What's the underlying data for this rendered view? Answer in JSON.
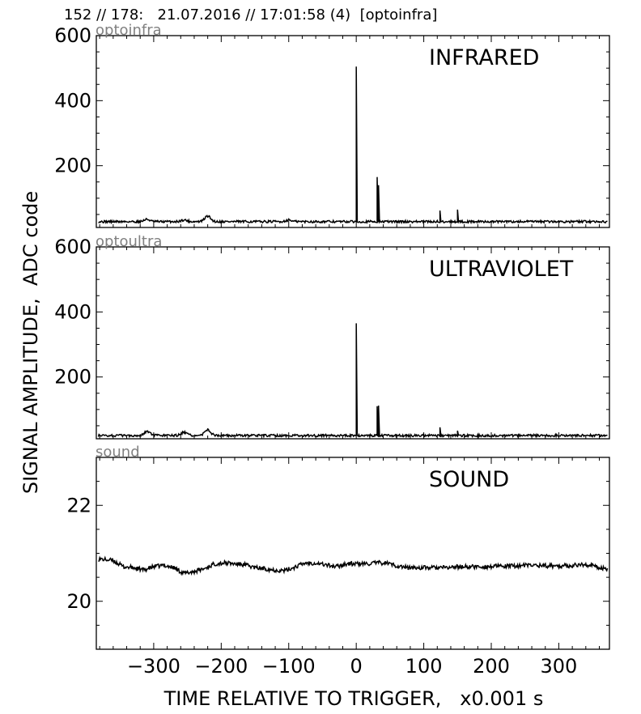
{
  "header": {
    "title": "152 // 178:   21.07.2016 // 17:01:58 (4)  [optoinfra]"
  },
  "figure": {
    "ylabel": "SIGNAL AMPLITUDE,  ADC code",
    "xlabel": "TIME RELATIVE TO TRIGGER,   x0.001 s"
  },
  "chart_data": [
    {
      "type": "line",
      "channel": "optoinfra",
      "title": "INFRARED",
      "xlim": [
        -385,
        375
      ],
      "ylim": [
        10,
        600
      ],
      "yticks": [
        200,
        400,
        600
      ],
      "xtick_labels_shown": false,
      "baseline": 28,
      "bumps": [
        [
          -310,
          35
        ],
        [
          -255,
          33
        ],
        [
          -220,
          45
        ],
        [
          -100,
          33
        ]
      ],
      "peaks": [
        {
          "x": 0,
          "y": 505
        },
        {
          "x": 31,
          "y": 165
        },
        {
          "x": 33,
          "y": 140
        },
        {
          "x": 124,
          "y": 62
        },
        {
          "x": 150,
          "y": 65
        }
      ]
    },
    {
      "type": "line",
      "channel": "optoultra",
      "title": "ULTRAVIOLET",
      "xlim": [
        -385,
        375
      ],
      "ylim": [
        10,
        600
      ],
      "yticks": [
        200,
        400,
        600
      ],
      "xtick_labels_shown": false,
      "baseline": 20,
      "bumps": [
        [
          -310,
          33
        ],
        [
          -255,
          30
        ],
        [
          -220,
          38
        ]
      ],
      "peaks": [
        {
          "x": 0,
          "y": 365
        },
        {
          "x": 31,
          "y": 110
        },
        {
          "x": 33,
          "y": 112
        },
        {
          "x": 124,
          "y": 45
        },
        {
          "x": 150,
          "y": 35
        }
      ]
    },
    {
      "type": "line",
      "channel": "sound",
      "title": "SOUND",
      "xlim": [
        -385,
        375
      ],
      "ylim": [
        19.0,
        23.0
      ],
      "yticks": [
        20,
        22
      ],
      "xticks": [
        -300,
        -200,
        -100,
        0,
        100,
        200,
        300
      ],
      "xtick_labels": [
        "−300",
        "−200",
        "−100",
        "0",
        "100",
        "200",
        "300"
      ],
      "points": [
        [
          -380,
          20.88
        ],
        [
          -360,
          20.85
        ],
        [
          -345,
          20.72
        ],
        [
          -330,
          20.7
        ],
        [
          -315,
          20.65
        ],
        [
          -300,
          20.72
        ],
        [
          -285,
          20.75
        ],
        [
          -270,
          20.7
        ],
        [
          -255,
          20.58
        ],
        [
          -240,
          20.62
        ],
        [
          -225,
          20.68
        ],
        [
          -210,
          20.78
        ],
        [
          -195,
          20.8
        ],
        [
          -180,
          20.78
        ],
        [
          -165,
          20.76
        ],
        [
          -150,
          20.7
        ],
        [
          -135,
          20.68
        ],
        [
          -120,
          20.65
        ],
        [
          -105,
          20.64
        ],
        [
          -90,
          20.72
        ],
        [
          -75,
          20.8
        ],
        [
          -60,
          20.8
        ],
        [
          -45,
          20.76
        ],
        [
          -30,
          20.72
        ],
        [
          -15,
          20.78
        ],
        [
          0,
          20.78
        ],
        [
          15,
          20.78
        ],
        [
          30,
          20.8
        ],
        [
          45,
          20.8
        ],
        [
          60,
          20.74
        ],
        [
          75,
          20.7
        ],
        [
          90,
          20.7
        ],
        [
          105,
          20.7
        ],
        [
          120,
          20.7
        ],
        [
          135,
          20.7
        ],
        [
          150,
          20.72
        ],
        [
          165,
          20.72
        ],
        [
          180,
          20.72
        ],
        [
          195,
          20.72
        ],
        [
          210,
          20.73
        ],
        [
          225,
          20.73
        ],
        [
          240,
          20.74
        ],
        [
          255,
          20.75
        ],
        [
          270,
          20.75
        ],
        [
          285,
          20.74
        ],
        [
          300,
          20.74
        ],
        [
          315,
          20.74
        ],
        [
          330,
          20.76
        ],
        [
          345,
          20.76
        ],
        [
          360,
          20.7
        ],
        [
          372,
          20.68
        ]
      ]
    }
  ]
}
